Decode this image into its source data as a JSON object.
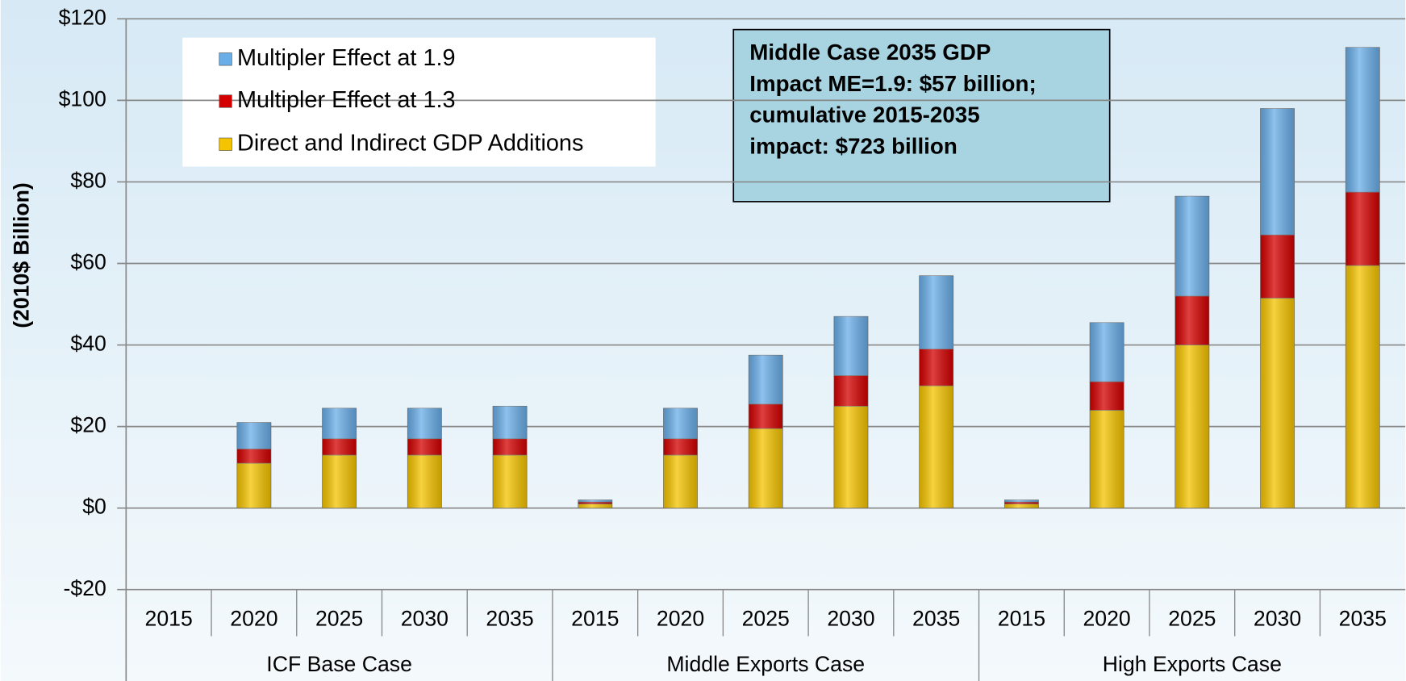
{
  "chart_data": {
    "type": "stacked_bar",
    "y_axis_label": "(2010$ Billion)",
    "groups": [
      {
        "name": "ICF Base Case",
        "categories": [
          "2015",
          "2020",
          "2025",
          "2030",
          "2035"
        ]
      },
      {
        "name": "Middle Exports Case",
        "categories": [
          "2015",
          "2020",
          "2025",
          "2030",
          "2035"
        ]
      },
      {
        "name": "High Exports Case",
        "categories": [
          "2015",
          "2020",
          "2025",
          "2030",
          "2035"
        ]
      }
    ],
    "series": [
      {
        "name": "Direct and Indirect GDP Additions",
        "color": "#f5c400",
        "values": [
          0,
          11,
          13,
          13,
          13,
          1,
          13,
          19.5,
          25,
          30,
          1,
          24,
          40,
          51.5,
          59.5
        ]
      },
      {
        "name": "Multipler Effect at 1.3",
        "color": "#d40000",
        "values": [
          0,
          3.5,
          4,
          4,
          4,
          0.5,
          4,
          6,
          7.5,
          9,
          0.5,
          7,
          12,
          15.5,
          18
        ]
      },
      {
        "name": "Multipler Effect at 1.9",
        "color": "#6aaee8",
        "values": [
          0,
          6.5,
          7.5,
          7.5,
          8,
          0.5,
          7.5,
          12,
          14.5,
          18,
          0.5,
          14.5,
          24.5,
          31,
          35.5
        ]
      }
    ],
    "ylim": [
      -20,
      120
    ],
    "yticks": [
      {
        "value": -20,
        "label": "-$20"
      },
      {
        "value": 0,
        "label": "$0"
      },
      {
        "value": 20,
        "label": "$20"
      },
      {
        "value": 40,
        "label": "$40"
      },
      {
        "value": 60,
        "label": "$60"
      },
      {
        "value": 80,
        "label": "$80"
      },
      {
        "value": 100,
        "label": "$100"
      },
      {
        "value": 120,
        "label": "$120"
      }
    ],
    "grid": true,
    "annotation": [
      "Middle Case 2035 GDP",
      "Impact ME=1.9: $57 billion;",
      "cumulative 2015-2035",
      "impact: $723 billion"
    ]
  }
}
